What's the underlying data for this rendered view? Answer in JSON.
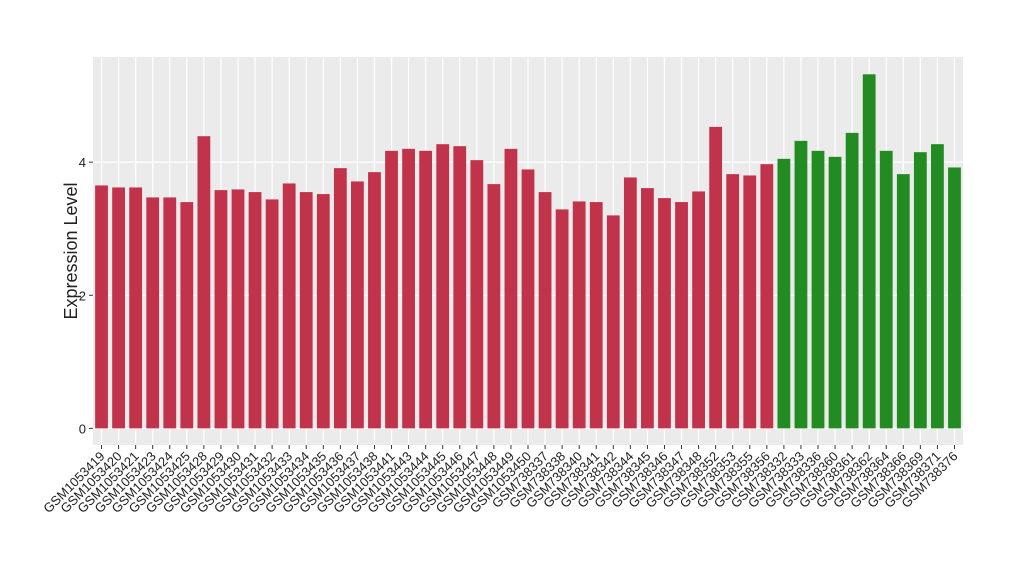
{
  "chart_data": {
    "type": "bar",
    "ylabel": "Expression Level",
    "categories": [
      "GSM1053419",
      "GSM1053420",
      "GSM1053421",
      "GSM1053423",
      "GSM1053424",
      "GSM1053425",
      "GSM1053428",
      "GSM1053429",
      "GSM1053430",
      "GSM1053431",
      "GSM1053432",
      "GSM1053433",
      "GSM1053434",
      "GSM1053435",
      "GSM1053436",
      "GSM1053437",
      "GSM1053438",
      "GSM1053441",
      "GSM1053443",
      "GSM1053444",
      "GSM1053445",
      "GSM1053446",
      "GSM1053447",
      "GSM1053448",
      "GSM1053449",
      "GSM1053450",
      "GSM738337",
      "GSM738338",
      "GSM738340",
      "GSM738341",
      "GSM738342",
      "GSM738344",
      "GSM738345",
      "GSM738346",
      "GSM738347",
      "GSM738348",
      "GSM738352",
      "GSM738353",
      "GSM738355",
      "GSM738356",
      "GSM738332",
      "GSM738333",
      "GSM738336",
      "GSM738360",
      "GSM738361",
      "GSM738362",
      "GSM738364",
      "GSM738366",
      "GSM738369",
      "GSM738371",
      "GSM738376"
    ],
    "values": [
      3.65,
      3.62,
      3.62,
      3.47,
      3.47,
      3.4,
      4.39,
      3.58,
      3.59,
      3.55,
      3.44,
      3.68,
      3.55,
      3.52,
      3.91,
      3.71,
      3.85,
      4.17,
      4.2,
      4.17,
      4.27,
      4.24,
      4.03,
      3.67,
      4.2,
      3.89,
      3.55,
      3.29,
      3.41,
      3.4,
      3.2,
      3.77,
      3.61,
      3.46,
      3.4,
      3.56,
      4.53,
      3.82,
      3.8,
      3.97,
      4.05,
      4.32,
      4.17,
      4.08,
      4.44,
      5.32,
      4.17,
      3.82,
      4.15,
      4.27,
      3.92
    ],
    "colors": [
      "#c0334a",
      "#c0334a",
      "#c0334a",
      "#c0334a",
      "#c0334a",
      "#c0334a",
      "#c0334a",
      "#c0334a",
      "#c0334a",
      "#c0334a",
      "#c0334a",
      "#c0334a",
      "#c0334a",
      "#c0334a",
      "#c0334a",
      "#c0334a",
      "#c0334a",
      "#c0334a",
      "#c0334a",
      "#c0334a",
      "#c0334a",
      "#c0334a",
      "#c0334a",
      "#c0334a",
      "#c0334a",
      "#c0334a",
      "#c0334a",
      "#c0334a",
      "#c0334a",
      "#c0334a",
      "#c0334a",
      "#c0334a",
      "#c0334a",
      "#c0334a",
      "#c0334a",
      "#c0334a",
      "#c0334a",
      "#c0334a",
      "#c0334a",
      "#c0334a",
      "#228b22",
      "#228b22",
      "#228b22",
      "#228b22",
      "#228b22",
      "#228b22",
      "#228b22",
      "#228b22",
      "#228b22",
      "#228b22",
      "#228b22"
    ],
    "ylim": [
      -0.25,
      5.58
    ],
    "yticks": [
      0,
      2,
      4
    ],
    "grid": true
  }
}
